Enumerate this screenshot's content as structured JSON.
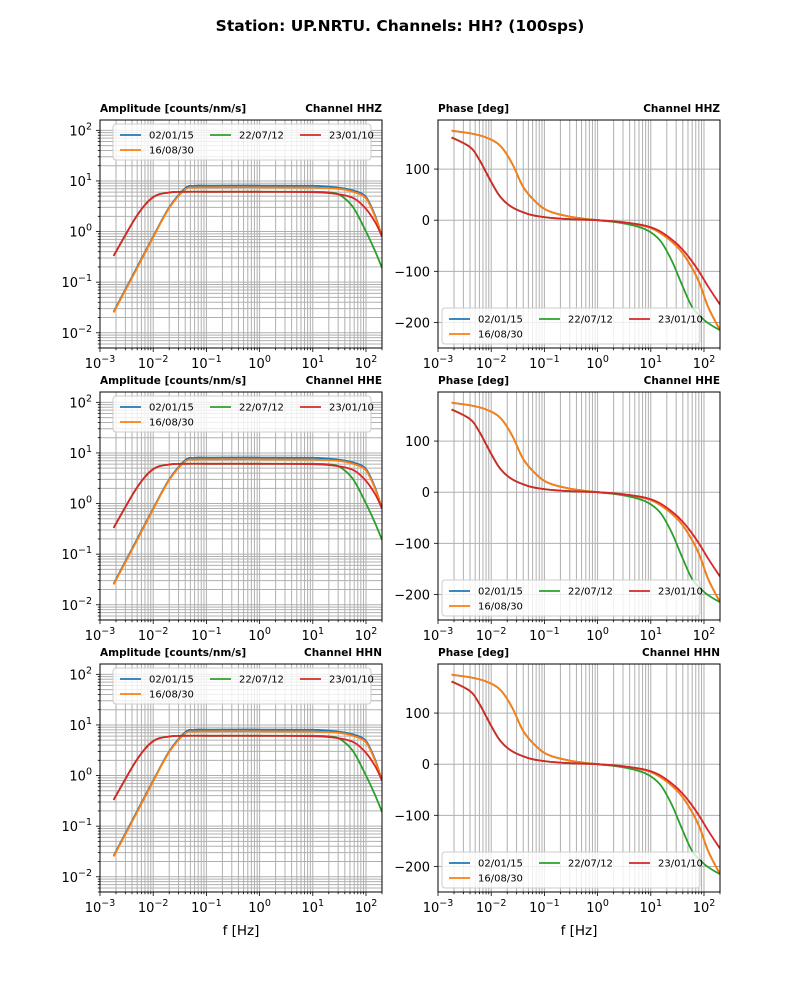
{
  "title": "Station: UP.NRTU. Channels: HH? (100sps)",
  "colors": {
    "02/01/15": "#1f77b4",
    "16/08/30": "#ff7f0e",
    "22/07/12": "#2ca02c",
    "23/01/10": "#d62728",
    "grid": "#b0b0b0"
  },
  "chart_data": [
    {
      "type": "line",
      "id": "amp-hhz",
      "kind": "amplitude",
      "title_left": "Amplitude [counts/nm/s]",
      "title_right": "Channel HHZ",
      "xscale": "log",
      "yscale": "log",
      "xlim": [
        0.001,
        200
      ],
      "ylim": [
        0.005,
        160
      ],
      "xticks": [
        "10^-3",
        "10^-2",
        "10^-1",
        "10^0",
        "10^1",
        "10^2"
      ],
      "yticks": [
        "10^-2",
        "10^-1",
        "10^0",
        "10^1",
        "10^2"
      ],
      "xlabel": "",
      "grid": "major+minor",
      "legend": "upper center",
      "series": [
        {
          "name": "02/01/15",
          "x": [
            0.0018,
            0.005,
            0.01,
            0.02,
            0.04,
            0.06,
            0.1,
            1,
            10,
            30,
            60,
            100,
            150,
            200
          ],
          "y": [
            0.026,
            0.2,
            0.8,
            3.0,
            7.2,
            8.0,
            8.1,
            8.1,
            8.0,
            7.4,
            6.4,
            4.8,
            2.0,
            0.8
          ]
        },
        {
          "name": "16/08/30",
          "x": [
            0.0018,
            0.005,
            0.01,
            0.02,
            0.04,
            0.06,
            0.1,
            1,
            10,
            30,
            60,
            100,
            150,
            200
          ],
          "y": [
            0.025,
            0.19,
            0.77,
            2.9,
            6.8,
            7.4,
            7.5,
            7.5,
            7.4,
            7.0,
            6.0,
            4.5,
            1.9,
            0.8
          ]
        },
        {
          "name": "22/07/12",
          "x": [
            0.0018,
            0.005,
            0.01,
            0.02,
            0.04,
            0.1,
            1,
            10,
            25,
            40,
            60,
            100,
            150,
            200
          ],
          "y": [
            0.33,
            2.1,
            4.8,
            5.9,
            6.1,
            6.1,
            6.1,
            6.1,
            5.8,
            4.5,
            2.8,
            1.0,
            0.4,
            0.19
          ]
        },
        {
          "name": "23/01/10",
          "x": [
            0.0018,
            0.005,
            0.01,
            0.02,
            0.04,
            0.1,
            1,
            10,
            30,
            60,
            100,
            150,
            200
          ],
          "y": [
            0.33,
            2.1,
            4.8,
            5.9,
            6.1,
            6.1,
            6.1,
            6.0,
            5.5,
            4.5,
            2.8,
            1.5,
            0.8
          ]
        }
      ]
    },
    {
      "type": "line",
      "id": "phase-hhz",
      "kind": "phase",
      "title_left": "Phase [deg]",
      "title_right": "Channel HHZ",
      "xscale": "log",
      "yscale": "linear",
      "xlim": [
        0.001,
        200
      ],
      "ylim": [
        -250,
        196
      ],
      "xticks": [
        "10^-3",
        "10^-2",
        "10^-1",
        "10^0",
        "10^1",
        "10^2"
      ],
      "yticks": [
        100,
        0,
        -100,
        -200
      ],
      "xlabel": "",
      "grid": "major",
      "legend": "lower left",
      "series": [
        {
          "name": "02/01/15",
          "x": [
            0.0018,
            0.004,
            0.008,
            0.015,
            0.025,
            0.04,
            0.07,
            0.12,
            0.3,
            1,
            3,
            8,
            15,
            30,
            50,
            80,
            120,
            200
          ],
          "y": [
            175,
            170,
            162,
            145,
            110,
            65,
            35,
            18,
            7,
            0,
            -5,
            -12,
            -25,
            -50,
            -80,
            -120,
            -170,
            -215
          ]
        },
        {
          "name": "16/08/30",
          "x": [
            0.0018,
            0.004,
            0.008,
            0.015,
            0.025,
            0.04,
            0.07,
            0.12,
            0.3,
            1,
            3,
            8,
            15,
            30,
            50,
            80,
            120,
            200
          ],
          "y": [
            175,
            170,
            162,
            145,
            110,
            65,
            35,
            18,
            7,
            0,
            -5,
            -12,
            -25,
            -50,
            -80,
            -120,
            -170,
            -215
          ]
        },
        {
          "name": "22/07/12",
          "x": [
            0.0018,
            0.004,
            0.006,
            0.01,
            0.015,
            0.025,
            0.05,
            0.1,
            0.3,
            1,
            3,
            8,
            15,
            25,
            40,
            60,
            100,
            150,
            200
          ],
          "y": [
            162,
            143,
            118,
            75,
            45,
            25,
            12,
            6,
            2,
            0,
            -6,
            -18,
            -40,
            -80,
            -130,
            -170,
            -195,
            -208,
            -215
          ]
        },
        {
          "name": "23/01/10",
          "x": [
            0.0018,
            0.004,
            0.006,
            0.01,
            0.015,
            0.025,
            0.05,
            0.1,
            0.3,
            1,
            3,
            8,
            15,
            30,
            50,
            80,
            120,
            200
          ],
          "y": [
            162,
            143,
            118,
            75,
            45,
            25,
            12,
            6,
            2,
            0,
            -4,
            -11,
            -22,
            -45,
            -70,
            -100,
            -130,
            -165
          ]
        }
      ]
    },
    {
      "type": "line",
      "id": "amp-hhe",
      "kind": "amplitude",
      "title_left": "Amplitude [counts/nm/s]",
      "title_right": "Channel HHE",
      "xscale": "log",
      "yscale": "log",
      "xlim": [
        0.001,
        200
      ],
      "ylim": [
        0.005,
        160
      ],
      "xticks": [
        "10^-3",
        "10^-2",
        "10^-1",
        "10^0",
        "10^1",
        "10^2"
      ],
      "yticks": [
        "10^-2",
        "10^-1",
        "10^0",
        "10^1",
        "10^2"
      ],
      "xlabel": "",
      "grid": "major+minor",
      "legend": "upper center",
      "series": "same-as:amp-hhz"
    },
    {
      "type": "line",
      "id": "phase-hhe",
      "kind": "phase",
      "title_left": "Phase [deg]",
      "title_right": "Channel HHE",
      "xscale": "log",
      "yscale": "linear",
      "xlim": [
        0.001,
        200
      ],
      "ylim": [
        -250,
        196
      ],
      "xticks": [
        "10^-3",
        "10^-2",
        "10^-1",
        "10^0",
        "10^1",
        "10^2"
      ],
      "yticks": [
        100,
        0,
        -100,
        -200
      ],
      "xlabel": "",
      "grid": "major",
      "legend": "lower left",
      "series": "same-as:phase-hhz"
    },
    {
      "type": "line",
      "id": "amp-hhn",
      "kind": "amplitude",
      "title_left": "Amplitude [counts/nm/s]",
      "title_right": "Channel HHN",
      "xscale": "log",
      "yscale": "log",
      "xlim": [
        0.001,
        200
      ],
      "ylim": [
        0.005,
        160
      ],
      "xticks": [
        "10^-3",
        "10^-2",
        "10^-1",
        "10^0",
        "10^1",
        "10^2"
      ],
      "yticks": [
        "10^-2",
        "10^-1",
        "10^0",
        "10^1",
        "10^2"
      ],
      "xlabel": "f [Hz]",
      "grid": "major+minor",
      "legend": "upper center",
      "series": "same-as:amp-hhz"
    },
    {
      "type": "line",
      "id": "phase-hhn",
      "kind": "phase",
      "title_left": "Phase [deg]",
      "title_right": "Channel HHN",
      "xscale": "log",
      "yscale": "linear",
      "xlim": [
        0.001,
        200
      ],
      "ylim": [
        -250,
        196
      ],
      "xticks": [
        "10^-3",
        "10^-2",
        "10^-1",
        "10^0",
        "10^1",
        "10^2"
      ],
      "yticks": [
        100,
        0,
        -100,
        -200
      ],
      "xlabel": "f [Hz]",
      "grid": "major",
      "legend": "lower left",
      "series": "same-as:phase-hhz"
    }
  ],
  "legend": {
    "entries": [
      "02/01/15",
      "22/07/12",
      "23/01/10",
      "16/08/30"
    ]
  }
}
